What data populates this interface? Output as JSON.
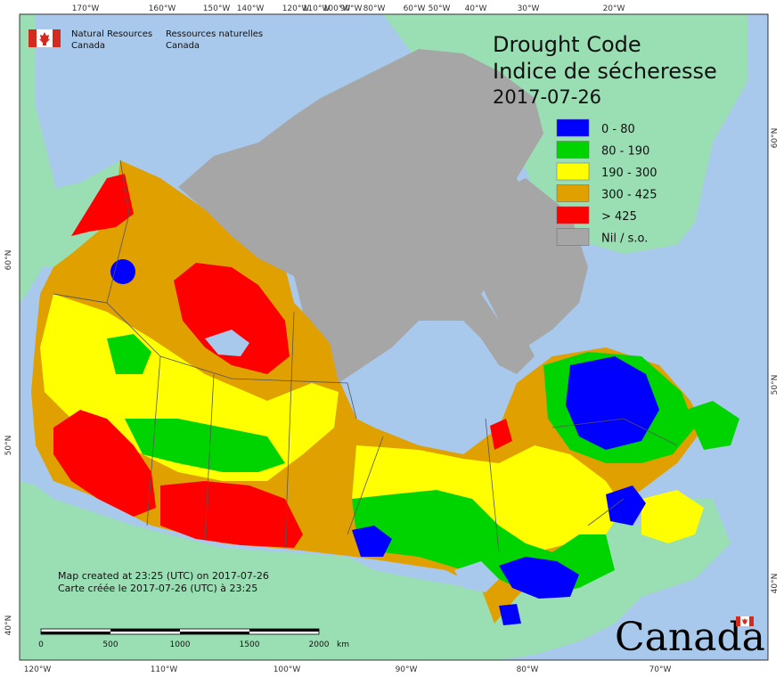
{
  "map": {
    "title_en": "Drought Code",
    "title_fr": "Indice de sécheresse",
    "date": "2017-07-26",
    "org_en_line1": "Natural Resources",
    "org_en_line2": "Canada",
    "org_fr_line1": "Ressources naturelles",
    "org_fr_line2": "Canada",
    "credit_en": "Map created at 23:25 (UTC) on 2017-07-26",
    "credit_fr": "Carte créée le 2017-07-26 (UTC) à 23:25",
    "wordmark": "Canada",
    "legend": [
      {
        "label": "0 - 80",
        "color": "#0000ff"
      },
      {
        "label": "80 - 190",
        "color": "#00d400"
      },
      {
        "label": "190 - 300",
        "color": "#ffff00"
      },
      {
        "label": "300 - 425",
        "color": "#e0a000"
      },
      {
        "label": "> 425",
        "color": "#ff0000"
      },
      {
        "label": "Nil / s.o.",
        "color": "#a6a6a6"
      }
    ],
    "colors": {
      "ocean": "#a8c8ec",
      "foreign_land": "#9adfb4",
      "nil": "#a6a6a6",
      "border": "#555555"
    },
    "top_ticks": [
      "170°W",
      "160°W",
      "150°W",
      "140°W",
      "120°W",
      "110°W",
      "100°W",
      "90°W",
      "80°W",
      "60°W",
      "50°W",
      "40°W",
      "30°W",
      "20°W"
    ],
    "bottom_ticks": [
      "120°W",
      "110°W",
      "100°W",
      "90°W",
      "80°W",
      "70°W"
    ],
    "left_ticks": [
      "60°N",
      "50°N",
      "40°N"
    ],
    "right_ticks": [
      "60°N",
      "50°N",
      "40°N"
    ],
    "scale": {
      "labels": [
        "0",
        "500",
        "1000",
        "1500",
        "2000"
      ],
      "unit": "km"
    }
  }
}
